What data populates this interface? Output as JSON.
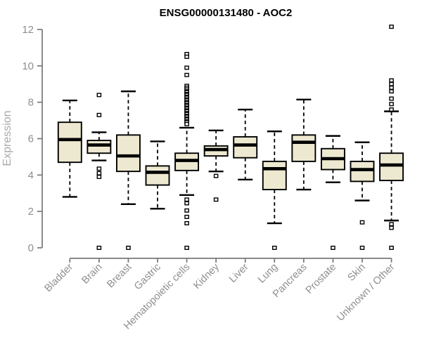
{
  "colors": {
    "box_fill": "#ede8d0",
    "box_stroke": "#000000",
    "axis": "#787878",
    "tick_label": "#8e8e8e",
    "axis_label": "#a8a8a8",
    "title": "#000000",
    "background": "#ffffff",
    "outlier_fill": "#ffffff"
  },
  "chart_data": {
    "type": "boxplot",
    "title": "ENSG00000131480 - AOC2",
    "ylabel": "Expression",
    "xlabel": "",
    "ylim": [
      0,
      12
    ],
    "yticks": [
      0,
      2,
      4,
      6,
      8,
      10,
      12
    ],
    "grid": false,
    "legend": false,
    "categories": [
      "Bladder",
      "Brain",
      "Breast",
      "Gastric",
      "Hematopoietic cells",
      "Kidney",
      "Liver",
      "Lung",
      "Pancreas",
      "Prostate",
      "Skin",
      "Unknown / Other"
    ],
    "series": [
      {
        "name": "Bladder",
        "whisker_low": 2.8,
        "q1": 4.7,
        "median": 5.95,
        "q3": 6.9,
        "whisker_high": 8.1,
        "outliers": []
      },
      {
        "name": "Brain",
        "whisker_low": 4.8,
        "q1": 5.2,
        "median": 5.65,
        "q3": 5.9,
        "whisker_high": 6.35,
        "outliers": [
          8.4,
          7.3,
          4.35,
          4.1,
          3.9,
          0
        ]
      },
      {
        "name": "Breast",
        "whisker_low": 2.4,
        "q1": 4.2,
        "median": 5.05,
        "q3": 6.2,
        "whisker_high": 8.6,
        "outliers": [
          0
        ]
      },
      {
        "name": "Gastric",
        "whisker_low": 2.15,
        "q1": 3.45,
        "median": 4.15,
        "q3": 4.5,
        "whisker_high": 5.85,
        "outliers": []
      },
      {
        "name": "Hematopoietic cells",
        "whisker_low": 2.9,
        "q1": 4.25,
        "median": 4.8,
        "q3": 5.2,
        "whisker_high": 6.6,
        "outliers": [
          10.65,
          10.5,
          9.9,
          9.5,
          8.9,
          8.8,
          8.7,
          8.6,
          8.55,
          8.45,
          8.4,
          8.3,
          8.25,
          8.15,
          8.1,
          8.0,
          7.95,
          7.85,
          7.8,
          7.7,
          7.65,
          7.55,
          7.5,
          7.4,
          7.35,
          7.25,
          7.2,
          7.1,
          7.05,
          6.95,
          6.9,
          6.8,
          2.65,
          2.45,
          2.05,
          1.7,
          1.35,
          0
        ]
      },
      {
        "name": "Kidney",
        "whisker_low": 4.2,
        "q1": 5.05,
        "median": 5.4,
        "q3": 5.6,
        "whisker_high": 6.45,
        "outliers": [
          3.95,
          2.65
        ]
      },
      {
        "name": "Liver",
        "whisker_low": 3.75,
        "q1": 4.95,
        "median": 5.65,
        "q3": 6.1,
        "whisker_high": 7.6,
        "outliers": []
      },
      {
        "name": "Lung",
        "whisker_low": 1.35,
        "q1": 3.2,
        "median": 4.35,
        "q3": 4.75,
        "whisker_high": 6.4,
        "outliers": [
          0
        ]
      },
      {
        "name": "Pancreas",
        "whisker_low": 3.2,
        "q1": 4.75,
        "median": 5.8,
        "q3": 6.2,
        "whisker_high": 8.15,
        "outliers": []
      },
      {
        "name": "Prostate",
        "whisker_low": 3.6,
        "q1": 4.3,
        "median": 4.9,
        "q3": 5.45,
        "whisker_high": 6.15,
        "outliers": [
          0
        ]
      },
      {
        "name": "Skin",
        "whisker_low": 2.6,
        "q1": 3.65,
        "median": 4.3,
        "q3": 4.75,
        "whisker_high": 5.8,
        "outliers": [
          1.4,
          0
        ]
      },
      {
        "name": "Unknown / Other",
        "whisker_low": 1.5,
        "q1": 3.7,
        "median": 4.55,
        "q3": 5.2,
        "whisker_high": 7.5,
        "outliers": [
          12.15,
          9.2,
          9.0,
          8.8,
          8.6,
          8.2,
          7.9,
          7.6,
          1.3,
          1.1,
          0
        ]
      }
    ]
  }
}
